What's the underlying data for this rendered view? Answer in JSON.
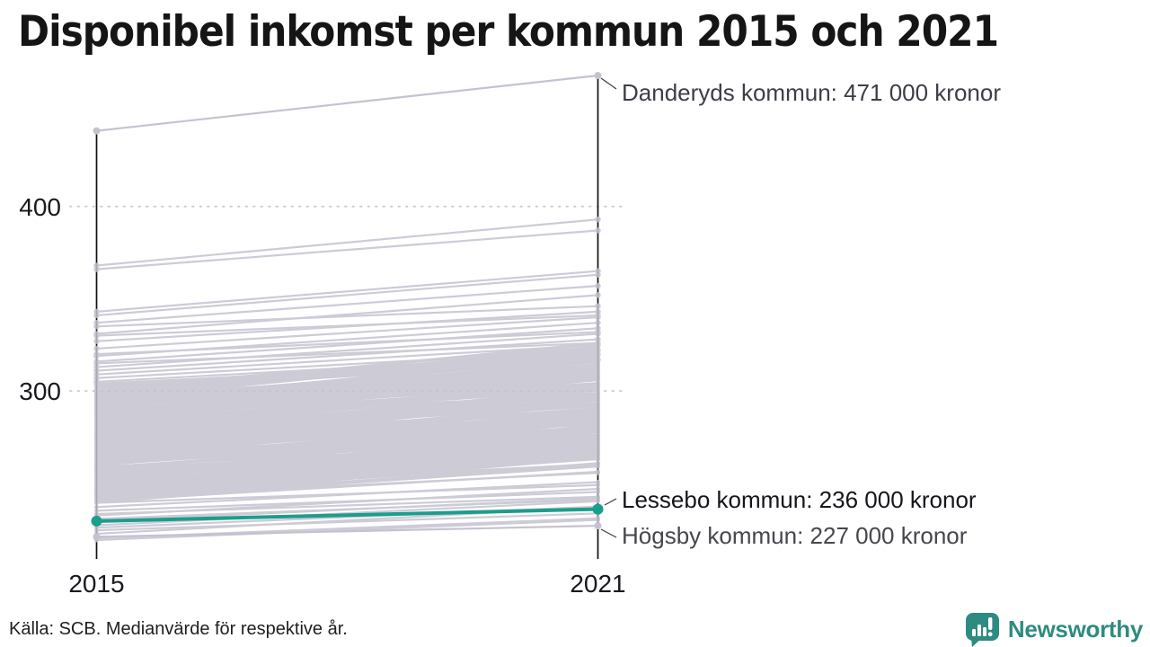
{
  "title": "Disponibel inkomst per kommun 2015 och 2021",
  "footer": {
    "source": "Källa: SCB. Medianvärde för respektive år."
  },
  "logo": {
    "text": "Newsworthy",
    "color": "#2e8b82"
  },
  "colors": {
    "background_line": "#c5c2d0",
    "highlight": "#1b9e8b",
    "axis": "#111111",
    "grid": "#cfced6",
    "connector": "#3c3c44",
    "tick_text": "#19191e"
  },
  "chart_data": {
    "type": "slope",
    "title": "Disponibel inkomst per kommun 2015 och 2021",
    "x_labels": [
      "2015",
      "2021"
    ],
    "y_ticks": [
      400,
      300
    ],
    "y_domain": [
      209.5,
      471
    ],
    "unit_suffix": "000 kronor",
    "grid": "dotted horizontal at y ticks",
    "annotations": [
      {
        "id": "danderyd",
        "label": "Danderyds kommun: 471 000 kronor",
        "v2015": 441,
        "v2021": 471,
        "highlight": false,
        "label_color": "#3d3d47"
      },
      {
        "id": "lessebo",
        "label": "Lessebo kommun: 236 000 kronor",
        "v2015": 229.5,
        "v2021": 236,
        "highlight": true,
        "label_color": "#15151b"
      },
      {
        "id": "hogsby",
        "label": "Högsby kommun: 227 000 kronor",
        "v2015": 221,
        "v2021": 227,
        "highlight": false,
        "label_color": "#46464e"
      }
    ],
    "background_lines": [
      [
        368,
        393
      ],
      [
        366,
        387
      ],
      [
        343,
        365
      ],
      [
        341,
        363
      ],
      [
        337,
        357
      ],
      [
        335,
        346
      ],
      [
        331,
        352
      ],
      [
        327,
        343
      ],
      [
        323,
        340
      ],
      [
        319,
        337
      ],
      [
        316,
        334
      ],
      [
        313,
        331
      ],
      [
        311,
        328
      ],
      [
        309,
        325
      ],
      [
        307,
        322
      ],
      [
        305,
        320
      ],
      [
        330,
        341
      ],
      [
        320,
        332
      ],
      [
        315,
        326
      ],
      [
        304,
        317
      ]
    ],
    "estimated_density_bands": [
      {
        "count": 235,
        "v2015_min": 240,
        "v2015_max": 303,
        "uplift_min": 13,
        "uplift_max": 27
      },
      {
        "count": 13,
        "v2015_min": 219,
        "v2015_max": 239,
        "uplift_min": 9,
        "uplift_max": 16
      }
    ]
  }
}
